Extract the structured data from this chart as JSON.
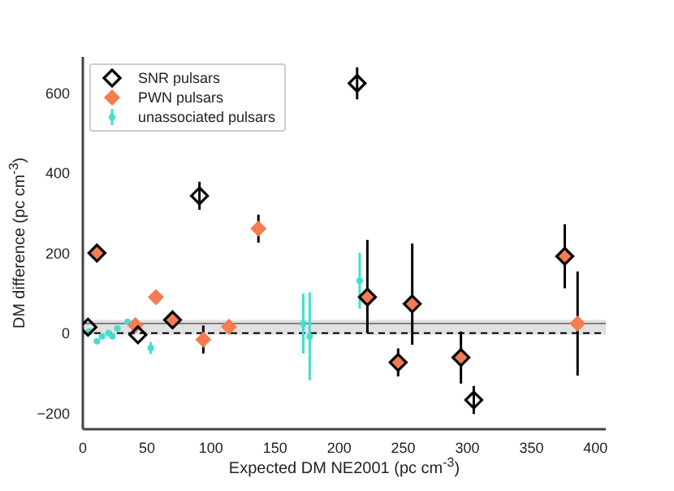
{
  "chart_data": {
    "type": "scatter",
    "xlabel": "Expected DM NE2001 (pc cm$^{-3}$)",
    "ylabel": "DM difference (pc cm$^{-3}$)",
    "xlim": [
      0,
      408
    ],
    "ylim": [
      -240,
      690
    ],
    "xticks": [
      0,
      50,
      100,
      150,
      200,
      250,
      300,
      350,
      400
    ],
    "yticks": [
      -200,
      0,
      200,
      400,
      600
    ],
    "legend": "top left",
    "marker": "diamond",
    "ref_lines": [
      {
        "axis": "y",
        "value": 0,
        "color": "#000000",
        "line_style": "dashed"
      },
      {
        "axis": "y",
        "value": 24,
        "color": "#808080",
        "line_style": "solid"
      }
    ],
    "bands": [
      {
        "axis": "y",
        "from": -4,
        "to": 33,
        "color": "#d9d9d9"
      }
    ],
    "series": [
      {
        "name": "SNR pulsars",
        "color": "#000000",
        "x": [
          4,
          43,
          91,
          214,
          305,
          11,
          70,
          222,
          257,
          246,
          295,
          376
        ],
        "values": [
          15,
          -4,
          343,
          624,
          -167,
          200,
          33,
          90,
          73,
          -73,
          -61,
          192
        ],
        "errors": [
          null,
          null,
          35,
          40,
          35,
          null,
          15,
          [
            0,
            233
          ],
          [
            -29,
            224
          ],
          35,
          65,
          80
        ]
      },
      {
        "name": "PWN pulsars",
        "color": "#f47c50",
        "x": [
          11,
          70,
          222,
          257,
          246,
          295,
          376,
          137,
          57,
          41,
          94,
          114,
          386
        ],
        "values": [
          200,
          33,
          90,
          73,
          -73,
          -61,
          192,
          261,
          90,
          20,
          -16,
          16,
          24
        ],
        "errors": [
          null,
          null,
          null,
          null,
          null,
          null,
          null,
          35,
          null,
          null,
          35,
          null,
          130
        ]
      },
      {
        "name": "unassociated pulsars",
        "color": "#40e0d0",
        "marker": "circle",
        "x": [
          5,
          11,
          15,
          20,
          23,
          27,
          35,
          53,
          172,
          177,
          216
        ],
        "values": [
          4,
          -20,
          -8,
          0,
          -8,
          12,
          28,
          -37,
          24,
          -8,
          131
        ],
        "errors": [
          null,
          null,
          null,
          null,
          null,
          null,
          null,
          15,
          75,
          110,
          70
        ]
      }
    ]
  }
}
